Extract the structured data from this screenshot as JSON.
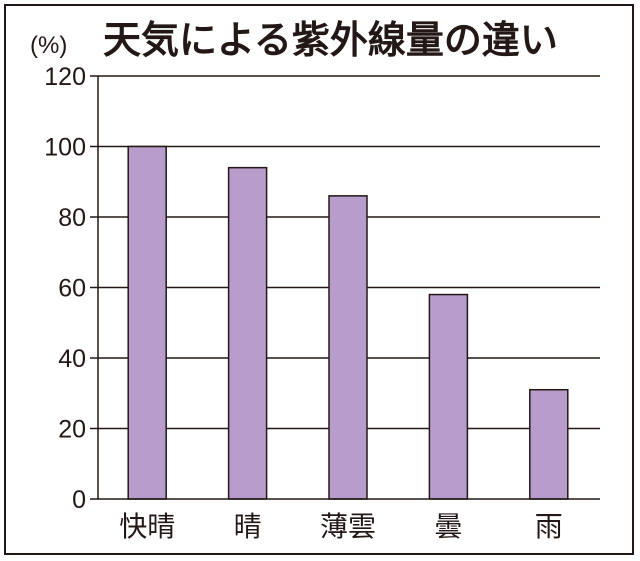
{
  "chart_data": {
    "type": "bar",
    "title": "天気による紫外線量の違い",
    "ylabel": "(%)",
    "xlabel": "",
    "categories": [
      "快晴",
      "晴",
      "薄雲",
      "曇",
      "雨"
    ],
    "values": [
      100,
      94,
      86,
      58,
      31
    ],
    "ylim": [
      0,
      120
    ],
    "yticks": [
      "0",
      "20",
      "40",
      "60",
      "80",
      "100",
      "120"
    ],
    "grid": true,
    "legend": "none"
  },
  "colors": {
    "bar_fill": "#b89ccb",
    "bar_stroke": "#231815",
    "axis": "#231815",
    "gridline": "#231815",
    "text": "#231815",
    "background": "#ffffff"
  }
}
